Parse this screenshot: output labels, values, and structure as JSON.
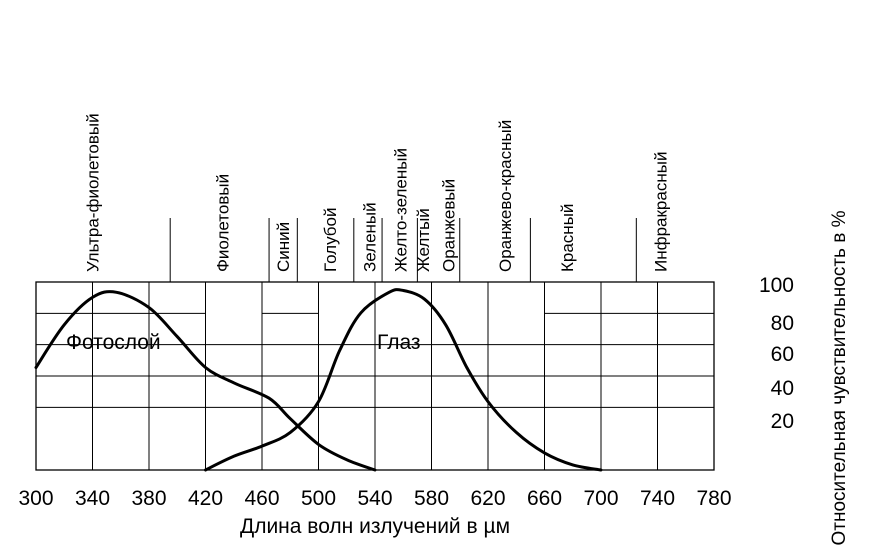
{
  "chart_data": {
    "type": "line",
    "xlabel": "Длина волн излучений в µм",
    "ylabel": "Относительная чувствительность в %",
    "xlim": [
      300,
      780
    ],
    "ylim": [
      0,
      110
    ],
    "x_ticks": [
      "300",
      "340",
      "380",
      "420",
      "460",
      "500",
      "540",
      "580",
      "620",
      "660",
      "700",
      "740",
      "780"
    ],
    "y_ticks": [
      "100",
      "80",
      "60",
      "40",
      "20"
    ],
    "grid": true,
    "series": [
      {
        "name": "Фотослой",
        "x": [
          300,
          320,
          340,
          357,
          380,
          400,
          420,
          440,
          465,
          480,
          500,
          520,
          540
        ],
        "y": [
          60,
          85,
          101,
          104,
          95,
          78,
          60,
          51,
          42,
          30,
          15,
          6,
          0
        ]
      },
      {
        "name": "Глаз",
        "x": [
          420,
          440,
          460,
          480,
          500,
          515,
          530,
          550,
          560,
          575,
          590,
          605,
          620,
          640,
          660,
          680,
          700
        ],
        "y": [
          0,
          8,
          14,
          22,
          40,
          70,
          92,
          104,
          105,
          100,
          85,
          60,
          40,
          22,
          10,
          3,
          0
        ]
      }
    ],
    "spectrum_bands": [
      {
        "label": "Ультра-фиолетовый",
        "center": 340
      },
      {
        "label": "Фиолетовый",
        "center": 432
      },
      {
        "label": "Синий",
        "center": 475
      },
      {
        "label": "Голубой",
        "center": 508
      },
      {
        "label": "Зеленый",
        "center": 536
      },
      {
        "label": "Желто-зеленый",
        "center": 558
      },
      {
        "label": "Желтый",
        "center": 574
      },
      {
        "label": "Оранжевый",
        "center": 592
      },
      {
        "label": "Оранжево-красный",
        "center": 632
      },
      {
        "label": "Красный",
        "center": 676
      },
      {
        "label": "Инфракрасный",
        "center": 742
      }
    ],
    "band_dividers": [
      395,
      465,
      485,
      525,
      545,
      570,
      600,
      650,
      725
    ]
  }
}
